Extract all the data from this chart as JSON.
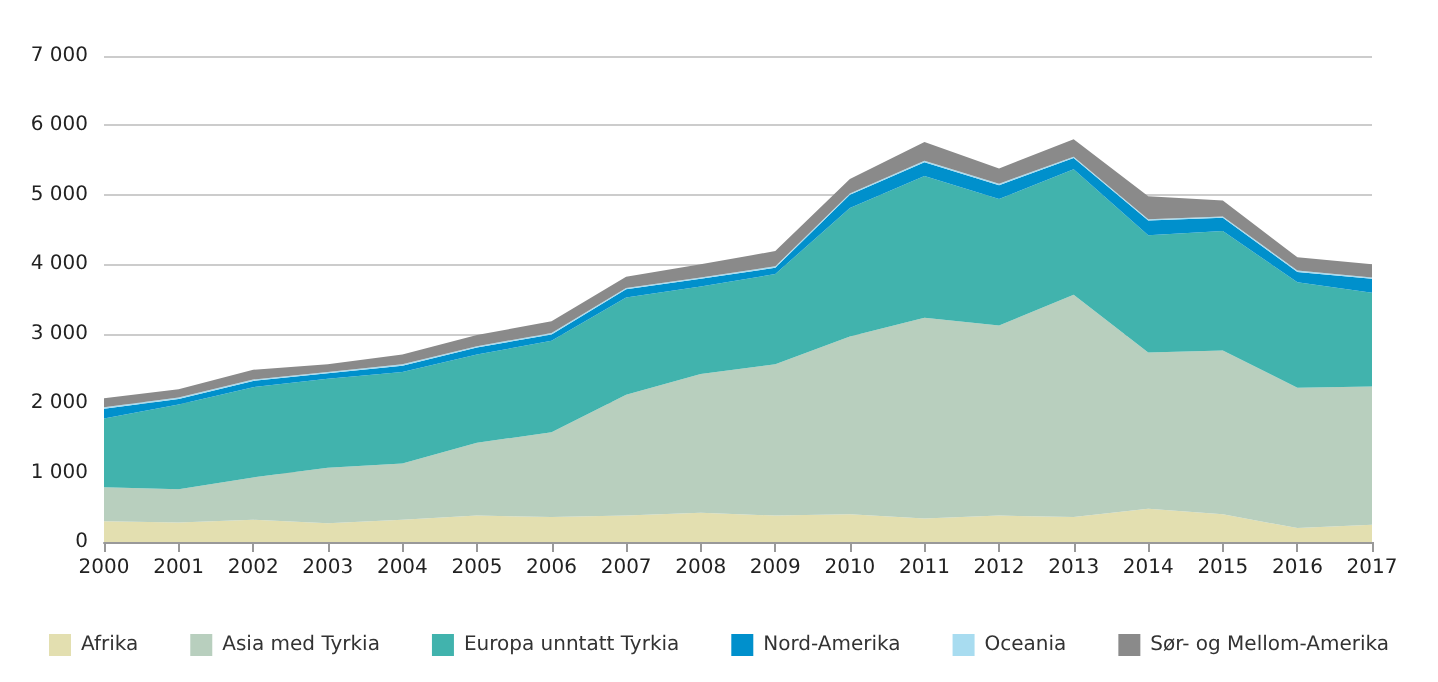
{
  "chart_data": {
    "type": "area",
    "stacked": true,
    "categories": [
      "2000",
      "2001",
      "2002",
      "2003",
      "2004",
      "2005",
      "2006",
      "2007",
      "2008",
      "2009",
      "2010",
      "2011",
      "2012",
      "2013",
      "2014",
      "2015",
      "2016",
      "2017"
    ],
    "ylim": [
      0,
      7000
    ],
    "yticks": [
      0,
      {
        "value": 1000,
        "label": "1 000"
      },
      {
        "value": 2000,
        "label": "2 000"
      },
      {
        "value": 3000,
        "label": "3 000"
      },
      {
        "value": 4000,
        "label": "4 000"
      },
      {
        "value": 5000,
        "label": "5 000"
      },
      {
        "value": 6000,
        "label": "6 000"
      },
      {
        "value": 7000,
        "label": "7 000"
      }
    ],
    "grid": "y",
    "legend": "bottom",
    "series": [
      {
        "name": "Afrika",
        "color": "#e3dfb0",
        "values": [
          300,
          280,
          320,
          270,
          320,
          380,
          360,
          380,
          420,
          380,
          400,
          340,
          380,
          360,
          480,
          400,
          200,
          250
        ]
      },
      {
        "name": "Asia med Tyrkia",
        "color": "#b8cfbe",
        "values": [
          490,
          480,
          610,
          800,
          810,
          1050,
          1220,
          1740,
          2000,
          2180,
          2560,
          2890,
          2740,
          3200,
          2250,
          2360,
          2020,
          1990
        ]
      },
      {
        "name": "Europa unntatt Tyrkia",
        "color": "#41b3ad",
        "values": [
          990,
          1220,
          1300,
          1280,
          1320,
          1270,
          1320,
          1400,
          1260,
          1300,
          1850,
          2040,
          1820,
          1810,
          1690,
          1720,
          1520,
          1350
        ]
      },
      {
        "name": "Nord-Amerika",
        "color": "#0090cc",
        "values": [
          140,
          80,
          90,
          80,
          90,
          100,
          90,
          120,
          110,
          90,
          190,
          200,
          200,
          160,
          210,
          190,
          150,
          200
        ]
      },
      {
        "name": "Oceania",
        "color": "#a8dcf0",
        "values": [
          20,
          20,
          20,
          20,
          20,
          20,
          20,
          20,
          20,
          20,
          20,
          20,
          20,
          20,
          20,
          20,
          20,
          20
        ]
      },
      {
        "name": "Sør- og Mellom-Amerika",
        "color": "#8a8a8a",
        "values": [
          130,
          120,
          140,
          110,
          140,
          160,
          170,
          160,
          190,
          220,
          210,
          270,
          220,
          250,
          330,
          230,
          190,
          190
        ]
      }
    ]
  }
}
